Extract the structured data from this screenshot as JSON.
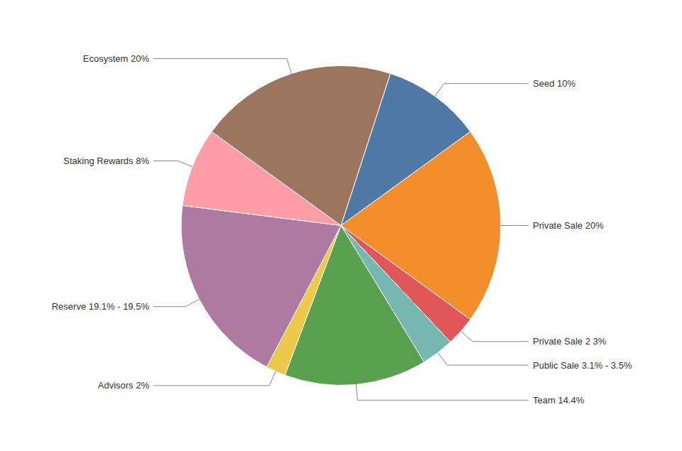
{
  "chart_data": {
    "type": "pie",
    "categories": [
      "Seed 10%",
      "Private Sale 20%",
      "Private Sale 2 3%",
      "Public Sale 3.1% - 3.5%",
      "Team 14.4%",
      "Advisors 2%",
      "Reserve 19.1% - 19.5%",
      "Staking Rewards 8%",
      "Ecosystem 20%"
    ],
    "values": [
      10,
      20,
      3,
      3.3,
      14.4,
      2,
      19.3,
      8,
      20
    ]
  }
}
